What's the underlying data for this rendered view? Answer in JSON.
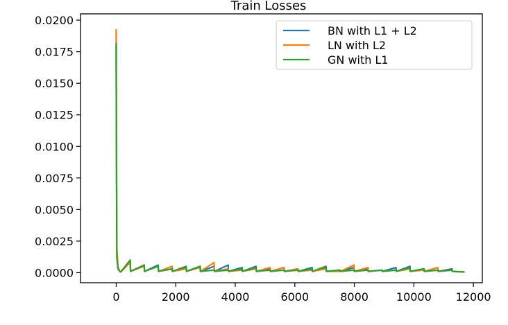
{
  "chart_data": {
    "type": "line",
    "title": "Train Losses",
    "xlabel": "",
    "ylabel": "",
    "xlim": [
      -1200,
      12300
    ],
    "ylim": [
      -0.0008,
      0.0205
    ],
    "xticks": [
      0,
      2000,
      4000,
      6000,
      8000,
      10000,
      12000
    ],
    "xtick_labels": [
      "0",
      "2000",
      "4000",
      "6000",
      "8000",
      "10000",
      "12000"
    ],
    "yticks": [
      0.0,
      0.0025,
      0.005,
      0.0075,
      0.01,
      0.0125,
      0.015,
      0.0175,
      0.02
    ],
    "ytick_labels": [
      "0.0000",
      "0.0025",
      "0.0050",
      "0.0075",
      "0.0100",
      "0.0125",
      "0.0150",
      "0.0175",
      "0.0200"
    ],
    "grid": false,
    "legend_position": "top-right",
    "series": [
      {
        "name": "BN with L1 + L2",
        "color": "#1f77b4",
        "x": [
          0,
          1,
          20,
          60,
          120,
          150,
          470,
          480,
          940,
          950,
          1410,
          1420,
          1880,
          1890,
          2350,
          2360,
          2820,
          2830,
          3290,
          3300,
          3760,
          3770,
          4230,
          4240,
          4700,
          4710,
          5170,
          5180,
          5640,
          5650,
          6110,
          6120,
          6580,
          6590,
          7050,
          7060,
          7520,
          7530,
          7990,
          8000,
          8460,
          8470,
          8930,
          8940,
          9400,
          9410,
          9870,
          9880,
          10340,
          10350,
          10810,
          10820,
          11280,
          11290,
          11700
        ],
        "y": [
          0.0191,
          0.016,
          0.0018,
          0.0004,
          0.0001,
          5e-05,
          0.0009,
          0.0001,
          0.0006,
          0.0001,
          0.0006,
          0.0001,
          0.0003,
          0.0001,
          0.0004,
          0.0001,
          0.0005,
          0.0001,
          0.0005,
          0.0001,
          0.0006,
          0.0001,
          0.0004,
          0.0001,
          0.0005,
          0.0001,
          0.0003,
          0.0001,
          0.0004,
          0.0001,
          0.0003,
          0.0001,
          0.0004,
          0.0001,
          0.0004,
          0.0001,
          0.0002,
          0.0001,
          0.0004,
          0.0001,
          0.0003,
          0.0001,
          0.0002,
          0.0001,
          0.0004,
          0.0001,
          0.0005,
          0.0001,
          0.0003,
          0.0001,
          0.0002,
          0.0001,
          0.0003,
          0.0001,
          5e-05
        ]
      },
      {
        "name": "LN with L2",
        "color": "#ff7f0e",
        "x": [
          0,
          1,
          20,
          60,
          120,
          150,
          470,
          480,
          940,
          950,
          1410,
          1420,
          1880,
          1890,
          2350,
          2360,
          2820,
          2830,
          3290,
          3300,
          3760,
          3770,
          4230,
          4240,
          4700,
          4710,
          5170,
          5180,
          5640,
          5650,
          6110,
          6120,
          6580,
          6590,
          7050,
          7060,
          7520,
          7530,
          7990,
          8000,
          8460,
          8470,
          8930,
          8940,
          9400,
          9410,
          9870,
          9880,
          10340,
          10350,
          10810,
          10820,
          11280,
          11290,
          11700
        ],
        "y": [
          0.0193,
          0.0165,
          0.002,
          0.0005,
          0.0001,
          5e-05,
          0.0008,
          0.0001,
          0.0005,
          0.0001,
          0.0005,
          0.0001,
          0.0005,
          0.0001,
          0.0003,
          0.0001,
          0.0004,
          0.0001,
          0.0008,
          0.0001,
          0.0003,
          0.0001,
          0.0002,
          0.0001,
          0.0003,
          0.0001,
          0.0004,
          0.0001,
          0.0004,
          0.0001,
          0.0003,
          0.0001,
          0.0002,
          0.0001,
          0.0003,
          0.0001,
          0.0001,
          0.0001,
          0.0006,
          0.0001,
          0.0004,
          0.0001,
          0.0002,
          0.0001,
          0.0002,
          0.0001,
          0.0003,
          0.0001,
          0.0002,
          0.0001,
          0.0004,
          0.0001,
          0.0002,
          0.0001,
          5e-05
        ]
      },
      {
        "name": "GN with L1",
        "color": "#2ca02c",
        "x": [
          0,
          1,
          20,
          60,
          120,
          150,
          470,
          480,
          940,
          950,
          1410,
          1420,
          1880,
          1890,
          2350,
          2360,
          2820,
          2830,
          3290,
          3300,
          3760,
          3770,
          4230,
          4240,
          4700,
          4710,
          5170,
          5180,
          5640,
          5650,
          6110,
          6120,
          6580,
          6590,
          7050,
          7060,
          7520,
          7530,
          7990,
          8000,
          8460,
          8470,
          8930,
          8940,
          9400,
          9410,
          9870,
          9880,
          10340,
          10350,
          10810,
          10820,
          11280,
          11290,
          11700
        ],
        "y": [
          0.0182,
          0.015,
          0.0012,
          0.0003,
          0.0001,
          5e-05,
          0.001,
          0.0001,
          0.0006,
          0.0001,
          0.0005,
          0.0001,
          0.0003,
          0.0001,
          0.0005,
          0.0001,
          0.0005,
          0.0001,
          0.0002,
          0.0001,
          0.0002,
          0.0001,
          0.0003,
          0.0001,
          0.0004,
          0.0001,
          0.0002,
          0.0001,
          0.0002,
          0.0001,
          0.0002,
          0.0001,
          0.0003,
          0.0001,
          0.0005,
          0.0001,
          0.0002,
          0.0001,
          0.0002,
          0.0001,
          0.0002,
          0.0001,
          0.0002,
          0.0001,
          0.0002,
          0.0001,
          0.0004,
          0.0001,
          0.0003,
          0.0001,
          0.0002,
          0.0001,
          0.0002,
          0.0001,
          5e-05
        ]
      }
    ]
  }
}
